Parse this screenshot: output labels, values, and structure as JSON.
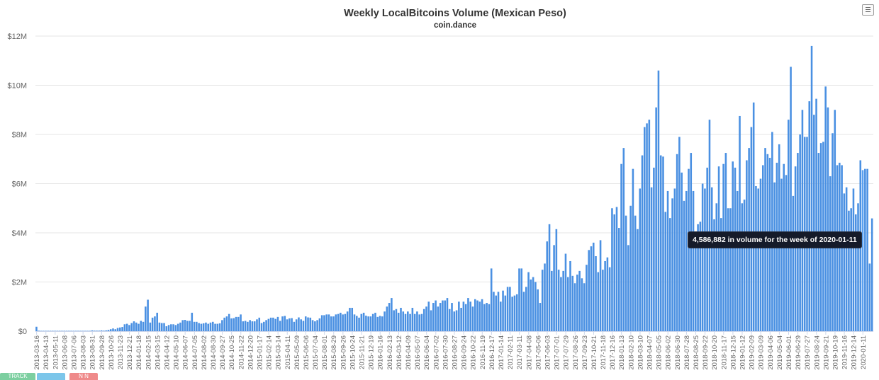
{
  "chart_data": {
    "type": "bar",
    "title": "Weekly LocalBitcoins Volume (Mexican Peso)",
    "subtitle": "coin.dance",
    "ylim": [
      0,
      12000000
    ],
    "y_ticks": [
      "$0",
      "$2M",
      "$4M",
      "$6M",
      "$8M",
      "$10M",
      "$12M"
    ],
    "y_tick_values": [
      0,
      2000000,
      4000000,
      6000000,
      8000000,
      10000000,
      12000000
    ],
    "grid": true,
    "bar_color": "#4a90e2",
    "start_date": "2013-03-16",
    "end_date": "2020-01-11",
    "x_tick_labels": [
      "2013-03-16",
      "2013-04-13",
      "2013-05-11",
      "2013-06-08",
      "2013-07-06",
      "2013-08-03",
      "2013-08-31",
      "2013-09-28",
      "2013-10-26",
      "2013-11-23",
      "2013-12-21",
      "2014-01-18",
      "2014-02-15",
      "2014-03-15",
      "2014-04-12",
      "2014-05-10",
      "2014-06-07",
      "2014-07-05",
      "2014-08-02",
      "2014-08-30",
      "2014-09-27",
      "2014-10-25",
      "2014-11-22",
      "2014-12-20",
      "2015-01-17",
      "2015-02-14",
      "2015-03-14",
      "2015-04-11",
      "2015-05-09",
      "2015-06-06",
      "2015-07-04",
      "2015-08-01",
      "2015-08-29",
      "2015-09-26",
      "2015-10-24",
      "2015-11-21",
      "2015-12-19",
      "2016-01-16",
      "2016-02-13",
      "2016-03-12",
      "2016-04-09",
      "2016-05-07",
      "2016-06-04",
      "2016-07-02",
      "2016-07-30",
      "2016-08-27",
      "2016-09-24",
      "2016-10-22",
      "2016-11-19",
      "2016-12-17",
      "2017-01-14",
      "2017-02-11",
      "2017-03-11",
      "2017-04-08",
      "2017-05-06",
      "2017-06-03",
      "2017-07-01",
      "2017-07-29",
      "2017-08-26",
      "2017-09-23",
      "2017-10-21",
      "2017-11-18",
      "2017-12-16",
      "2018-01-13",
      "2018-02-10",
      "2018-03-10",
      "2018-04-07",
      "2018-05-05",
      "2018-06-02",
      "2018-06-30",
      "2018-07-28",
      "2018-08-25",
      "2018-09-22",
      "2018-10-20",
      "2018-11-17",
      "2018-12-15",
      "2019-01-12",
      "2019-02-09",
      "2019-03-09",
      "2019-04-06",
      "2019-05-04",
      "2019-06-01",
      "2019-06-29",
      "2019-07-27",
      "2019-08-24",
      "2019-09-21",
      "2019-10-19",
      "2019-11-16",
      "2019-12-14",
      "2020-01-11"
    ],
    "values": [
      180000,
      20000,
      10000,
      5000,
      5000,
      5000,
      5000,
      5000,
      5000,
      5000,
      5000,
      5000,
      5000,
      5000,
      5000,
      5000,
      5000,
      5000,
      5000,
      5000,
      5000,
      10000,
      5000,
      10000,
      30000,
      20000,
      20000,
      20000,
      30000,
      20000,
      30000,
      50000,
      80000,
      110000,
      80000,
      130000,
      150000,
      170000,
      280000,
      300000,
      250000,
      330000,
      400000,
      350000,
      300000,
      420000,
      380000,
      1000000,
      1280000,
      350000,
      550000,
      600000,
      750000,
      350000,
      330000,
      330000,
      200000,
      250000,
      280000,
      280000,
      250000,
      300000,
      350000,
      450000,
      460000,
      420000,
      420000,
      750000,
      380000,
      380000,
      330000,
      300000,
      320000,
      350000,
      300000,
      350000,
      380000,
      300000,
      300000,
      320000,
      450000,
      550000,
      600000,
      700000,
      520000,
      530000,
      580000,
      580000,
      680000,
      400000,
      420000,
      380000,
      450000,
      400000,
      400000,
      480000,
      550000,
      330000,
      380000,
      450000,
      500000,
      550000,
      550000,
      500000,
      580000,
      420000,
      600000,
      620000,
      480000,
      520000,
      530000,
      380000,
      480000,
      560000,
      480000,
      420000,
      600000,
      560000,
      550000,
      450000,
      400000,
      450000,
      520000,
      650000,
      650000,
      680000,
      680000,
      600000,
      600000,
      680000,
      700000,
      750000,
      680000,
      700000,
      800000,
      950000,
      950000,
      680000,
      620000,
      550000,
      700000,
      750000,
      630000,
      600000,
      600000,
      700000,
      750000,
      580000,
      620000,
      600000,
      800000,
      1000000,
      1150000,
      1350000,
      850000,
      900000,
      750000,
      950000,
      800000,
      700000,
      800000,
      700000,
      950000,
      700000,
      800000,
      680000,
      700000,
      900000,
      1000000,
      1200000,
      850000,
      1150000,
      1250000,
      1000000,
      1150000,
      1250000,
      1250000,
      1350000,
      900000,
      1150000,
      800000,
      850000,
      1200000,
      950000,
      1200000,
      1100000,
      1350000,
      1200000,
      1000000,
      1300000,
      1250000,
      1200000,
      1300000,
      1100000,
      1150000,
      1100000,
      2550000,
      1600000,
      1450000,
      1600000,
      1200000,
      1650000,
      1450000,
      1800000,
      1800000,
      1400000,
      1450000,
      1500000,
      2550000,
      2550000,
      1600000,
      1800000,
      2400000,
      2100000,
      2200000,
      2000000,
      1700000,
      1150000,
      2500000,
      2750000,
      3650000,
      4350000,
      2450000,
      3500000,
      4150000,
      2500000,
      2200000,
      2450000,
      3150000,
      2200000,
      2850000,
      2250000,
      1950000,
      2300000,
      2450000,
      2150000,
      1950000,
      2700000,
      3300000,
      3450000,
      3600000,
      3050000,
      2400000,
      3700000,
      2500000,
      2850000,
      3000000,
      2600000,
      5000000,
      4750000,
      5050000,
      4200000,
      6800000,
      7450000,
      4700000,
      3500000,
      5100000,
      6600000,
      4700000,
      4150000,
      5800000,
      7150000,
      8300000,
      8450000,
      8600000,
      5850000,
      6650000,
      9100000,
      10600000,
      7150000,
      7100000,
      4850000,
      5700000,
      4600000,
      5400000,
      5800000,
      7200000,
      7900000,
      6450000,
      5300000,
      5700000,
      6600000,
      7250000,
      5700000,
      3650000,
      4350000,
      4450000,
      6000000,
      5800000,
      6650000,
      8600000,
      5850000,
      4550000,
      5200000,
      6700000,
      4600000,
      6800000,
      7250000,
      5000000,
      5000000,
      6900000,
      6650000,
      5700000,
      8750000,
      5200000,
      5350000,
      6950000,
      7450000,
      8300000,
      9300000,
      5900000,
      5800000,
      6200000,
      6750000,
      7450000,
      7200000,
      7050000,
      8100000,
      6050000,
      6850000,
      7600000,
      6200000,
      6800000,
      6350000,
      8600000,
      10750000,
      5500000,
      6700000,
      7250000,
      8000000,
      9000000,
      7900000,
      7900000,
      9350000,
      11600000,
      8800000,
      9450000,
      7250000,
      7650000,
      7700000,
      9950000,
      9100000,
      6300000,
      8050000,
      9000000,
      6750000,
      6850000,
      6750000,
      5600000,
      5850000,
      4900000,
      5000000,
      5800000,
      4750000,
      5200000,
      6950000,
      6550000,
      6600000,
      6600000,
      2750000,
      4586882
    ],
    "tooltip": "4,586,882 in volume for the week of 2020-01-11",
    "highlight_index": 356
  },
  "ui": {
    "menu_icon": "hamburger-menu-icon",
    "share_buttons": [
      "TRACK",
      "",
      "N N"
    ]
  }
}
